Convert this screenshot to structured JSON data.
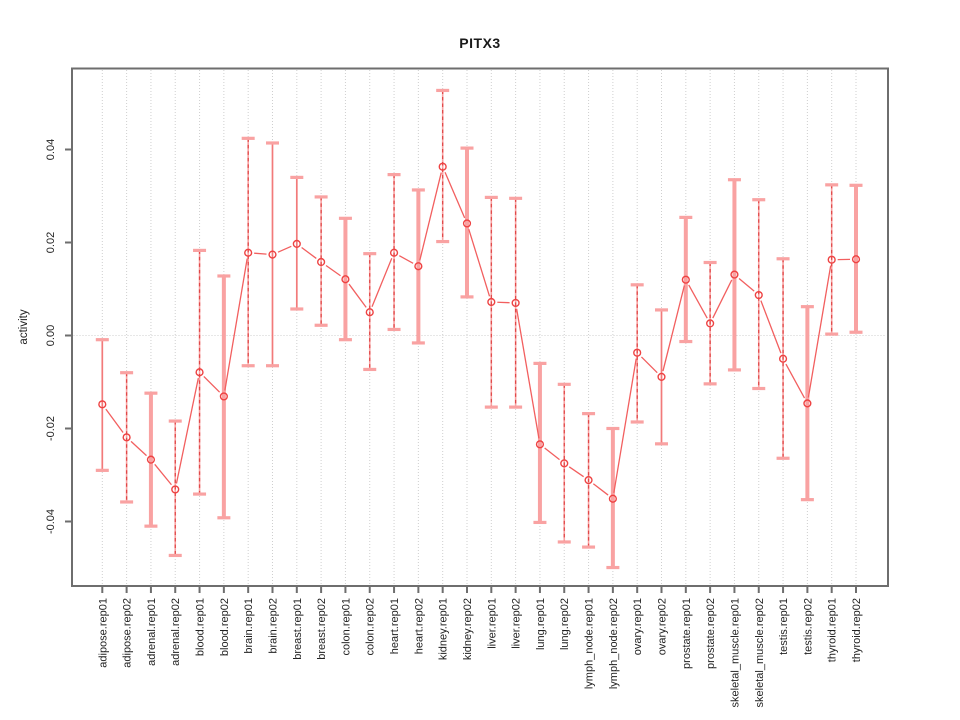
{
  "chart_data": {
    "type": "line",
    "title": "PITX3",
    "xlabel": "",
    "ylabel": "activity",
    "legend_position": "none",
    "grid": "vertical dotted gridlines at each category; dotted horizontal line at y=0",
    "ylim": [
      -0.054,
      0.057
    ],
    "yticks": [
      -0.04,
      -0.02,
      0,
      0.02,
      0.04
    ],
    "ytick_labels": [
      "-0.04",
      "-0.02",
      "0.00",
      "0.02",
      "0.04"
    ],
    "categories": [
      "adipose.rep01",
      "adipose.rep02",
      "adrenal.rep01",
      "adrenal.rep02",
      "blood.rep01",
      "blood.rep02",
      "brain.rep01",
      "brain.rep02",
      "breast.rep01",
      "breast.rep02",
      "colon.rep01",
      "colon.rep02",
      "heart.rep01",
      "heart.rep02",
      "kidney.rep01",
      "kidney.rep02",
      "liver.rep01",
      "liver.rep02",
      "lung.rep01",
      "lung.rep02",
      "lymph_node.rep01",
      "lymph_node.rep02",
      "ovary.rep01",
      "ovary.rep02",
      "prostate.rep01",
      "prostate.rep02",
      "skeletal_muscle.rep01",
      "skeletal_muscle.rep02",
      "testis.rep01",
      "testis.rep02",
      "thyroid.rep01",
      "thyroid.rep02"
    ],
    "series": [
      {
        "name": "PITX3 activity",
        "marker": "open-circle",
        "values": [
          -0.0148,
          -0.0219,
          -0.0267,
          -0.0331,
          -0.0079,
          -0.0131,
          0.0178,
          0.0174,
          0.0197,
          0.0158,
          0.0121,
          0.005,
          0.0178,
          0.0149,
          0.0363,
          0.0241,
          0.0072,
          0.007,
          -0.0234,
          -0.0275,
          -0.0311,
          -0.0351,
          -0.0037,
          -0.0089,
          0.012,
          0.0026,
          0.0131,
          0.0087,
          -0.005,
          -0.0146,
          0.0163,
          0.0164
        ],
        "ci_low": [
          -0.029,
          -0.0358,
          -0.041,
          -0.0473,
          -0.0341,
          -0.0392,
          -0.0065,
          -0.0065,
          0.0057,
          0.0022,
          -0.0009,
          -0.0073,
          0.0013,
          -0.0016,
          0.0202,
          0.0083,
          -0.0154,
          -0.0154,
          -0.0402,
          -0.0444,
          -0.0455,
          -0.0499,
          -0.0186,
          -0.0233,
          -0.0013,
          -0.0104,
          -0.0074,
          -0.0114,
          -0.0264,
          -0.0353,
          0.0003,
          0.0007
        ],
        "ci_high": [
          -0.0009,
          -0.008,
          -0.0124,
          -0.0184,
          0.0183,
          0.0128,
          0.0424,
          0.0414,
          0.034,
          0.0298,
          0.0252,
          0.0176,
          0.0346,
          0.0313,
          0.0527,
          0.0403,
          0.0297,
          0.0295,
          -0.006,
          -0.0105,
          -0.0168,
          -0.02,
          0.0109,
          0.0055,
          0.0254,
          0.0157,
          0.0335,
          0.0292,
          0.0165,
          0.0062,
          0.0324,
          0.0323
        ],
        "bar_styles": [
          "solid",
          "dashed",
          "thick",
          "dashed",
          "dashed",
          "thick",
          "dashed",
          "solid",
          "solid",
          "dashed",
          "thick",
          "dashed",
          "dashed",
          "thick",
          "dashed",
          "thick",
          "dashed",
          "dashed",
          "thick",
          "dashed",
          "dashed",
          "thick",
          "dashed",
          "solid",
          "thick",
          "dashed",
          "thick",
          "dashed",
          "dashed",
          "thick",
          "dashed",
          "thick"
        ]
      }
    ],
    "colors": {
      "line": "#f25f5f",
      "point": "#ee4242",
      "error_bar_pink": "#f9a2a2",
      "error_bar_dash": "#e04848",
      "error_bar_solid": "#f27a7a",
      "grid": "#cfcfcf",
      "box": "#6e6e6e",
      "text": "#1a1a1a"
    }
  }
}
